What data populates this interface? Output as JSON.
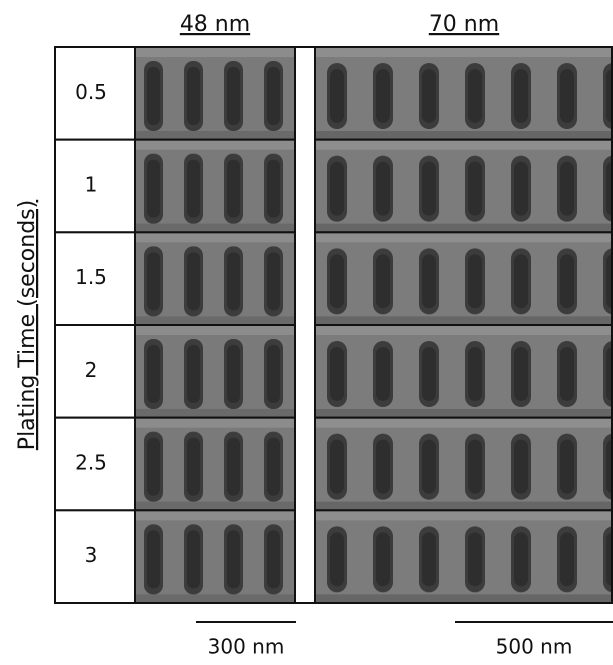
{
  "headers": [
    "48 nm",
    "70 nm"
  ],
  "axis_label": "Plating Time (seconds)",
  "rows": [
    "0.5",
    "1",
    "1.5",
    "2",
    "2.5",
    "3"
  ],
  "scale_bars": [
    "300 nm",
    "500 nm"
  ]
}
